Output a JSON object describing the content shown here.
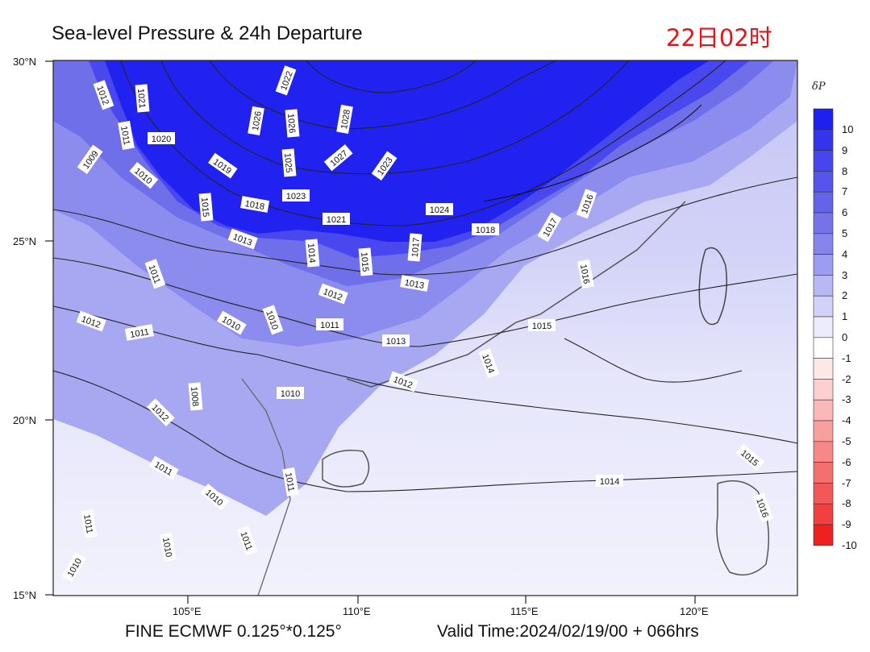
{
  "title": "Sea-level Pressure & 24h Departure",
  "stamp": "22日02时",
  "footer": {
    "model": "FINE ECMWF 0.125°*0.125°",
    "valid": "Valid Time:2024/02/19/00 + 066hrs"
  },
  "axes": {
    "lat_ticks": [
      "30°N",
      "25°N",
      "20°N",
      "15°N"
    ],
    "lon_ticks": [
      "105°E",
      "110°E",
      "115°E",
      "120°E"
    ]
  },
  "colorbar": {
    "unit": "δP",
    "levels": [
      "10",
      "9",
      "8",
      "7",
      "6",
      "5",
      "4",
      "3",
      "2",
      "1",
      "0",
      "-1",
      "-2",
      "-3",
      "-4",
      "-5",
      "-6",
      "-7",
      "-8",
      "-9",
      "-10"
    ],
    "colors": [
      "#1f1ff0",
      "#3434ee",
      "#4646ee",
      "#5555ec",
      "#6464ea",
      "#7474e8",
      "#8585ec",
      "#9c9cf0",
      "#b8b8f4",
      "#d2d2f8",
      "#ececfc",
      "#ffffff",
      "#fde8e8",
      "#fcd0d0",
      "#fab8b8",
      "#f8a0a0",
      "#f68888",
      "#f47070",
      "#f25858",
      "#f04040",
      "#ee2020"
    ]
  },
  "isobar_labels": [
    "1012",
    "1021",
    "1022",
    "1011",
    "1020",
    "1028",
    "1026",
    "1027",
    "1023",
    "1009",
    "1010",
    "1019",
    "1025",
    "1026",
    "1018",
    "1015",
    "1023",
    "1021",
    "1016",
    "1024",
    "1018",
    "1017",
    "1013",
    "1014",
    "1015",
    "1017",
    "1016",
    "1011",
    "1013",
    "1012",
    "1010",
    "1011",
    "1012",
    "1011",
    "1010",
    "1013",
    "1015",
    "1014",
    "1012",
    "1008",
    "1010",
    "1012",
    "1011",
    "1010",
    "1014",
    "1015",
    "1016",
    "1011",
    "1010",
    "1011",
    "1010",
    "1011"
  ]
}
